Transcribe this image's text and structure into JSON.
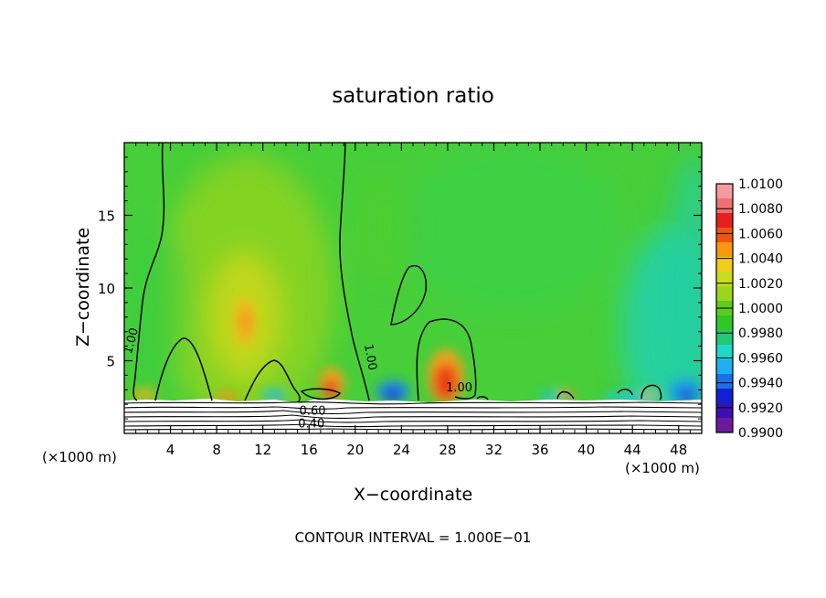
{
  "chart_data": {
    "type": "heatmap",
    "title": "saturation ratio",
    "xlabel": "X−coordinate",
    "ylabel": "Z−coordinate",
    "x_unit_left": "(×1000 m)",
    "x_unit_right": "(×1000 m)",
    "footer": "CONTOUR INTERVAL = 1.000E−01",
    "xlim": [
      0,
      50
    ],
    "ylim": [
      0,
      20
    ],
    "x_ticks": [
      {
        "value": 4,
        "label": "4"
      },
      {
        "value": 8,
        "label": "8"
      },
      {
        "value": 12,
        "label": "12"
      },
      {
        "value": 16,
        "label": "16"
      },
      {
        "value": 20,
        "label": "20"
      },
      {
        "value": 24,
        "label": "24"
      },
      {
        "value": 28,
        "label": "28"
      },
      {
        "value": 32,
        "label": "32"
      },
      {
        "value": 36,
        "label": "36"
      },
      {
        "value": 40,
        "label": "40"
      },
      {
        "value": 44,
        "label": "44"
      },
      {
        "value": 48,
        "label": "48"
      }
    ],
    "y_ticks": [
      {
        "value": 5,
        "label": "5"
      },
      {
        "value": 10,
        "label": "10"
      },
      {
        "value": 15,
        "label": "15"
      }
    ],
    "colorbar": {
      "labels": [
        "1.0100",
        "1.0080",
        "1.0060",
        "1.0040",
        "1.0020",
        "1.0000",
        "0.9980",
        "0.9960",
        "0.9940",
        "0.9920",
        "0.9900"
      ],
      "colors": [
        "#f39ba0",
        "#f07070",
        "#e62020",
        "#f0540f",
        "#f7980f",
        "#f2cc1a",
        "#c8dc1e",
        "#9ad61c",
        "#5ccd20",
        "#30c826",
        "#22c873",
        "#1ed8c8",
        "#20b0f0",
        "#1c70e6",
        "#1420d4",
        "#3a10b0",
        "#6c1a9c"
      ],
      "range": [
        0.99,
        1.01
      ]
    },
    "contour_labels": [
      {
        "text": "1.00",
        "x": 0.9,
        "y": 6.3
      },
      {
        "text": "1.00",
        "x": 21.0,
        "y": 5.2
      },
      {
        "text": "1.00",
        "x": 29.0,
        "y": 2.9
      },
      {
        "text": "0.60",
        "x": 16.3,
        "y": 1.3
      },
      {
        "text": "0.40",
        "x": 16.2,
        "y": 0.4
      }
    ]
  }
}
